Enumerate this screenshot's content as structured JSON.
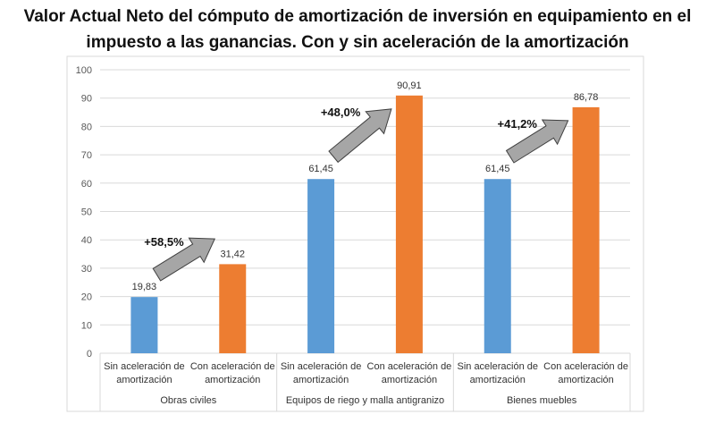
{
  "chart_data": {
    "type": "bar",
    "title": [
      "Valor Actual Neto del cómputo de amortización de inversión en equipamiento en el",
      "impuesto a las ganancias. Con y sin aceleración de la amortización"
    ],
    "ylim": [
      0,
      100
    ],
    "yticks": [
      0,
      10,
      20,
      30,
      40,
      50,
      60,
      70,
      80,
      90,
      100
    ],
    "grid": true,
    "groups": [
      {
        "name": "Obras civiles",
        "change_label": "+58,5%",
        "bars": [
          {
            "label": [
              "Sin aceleración de",
              "amortización"
            ],
            "value": 19.83,
            "value_label": "19,83",
            "color": "#5b9bd5"
          },
          {
            "label": [
              "Con aceleración de",
              "amortización"
            ],
            "value": 31.42,
            "value_label": "31,42",
            "color": "#ed7d31"
          }
        ]
      },
      {
        "name": "Equipos de riego y malla antigranizo",
        "change_label": "+48,0%",
        "bars": [
          {
            "label": [
              "Sin aceleración de",
              "amortización"
            ],
            "value": 61.45,
            "value_label": "61,45",
            "color": "#5b9bd5"
          },
          {
            "label": [
              "Con aceleración de",
              "amortización"
            ],
            "value": 90.91,
            "value_label": "90,91",
            "color": "#ed7d31"
          }
        ]
      },
      {
        "name": "Bienes muebles",
        "change_label": "+41,2%",
        "bars": [
          {
            "label": [
              "Sin aceleración de",
              "amortización"
            ],
            "value": 61.45,
            "value_label": "61,45",
            "color": "#5b9bd5"
          },
          {
            "label": [
              "Con aceleración de",
              "amortización"
            ],
            "value": 86.78,
            "value_label": "86,78",
            "color": "#ed7d31"
          }
        ]
      }
    ],
    "arrow_color": "#a6a6a6"
  }
}
